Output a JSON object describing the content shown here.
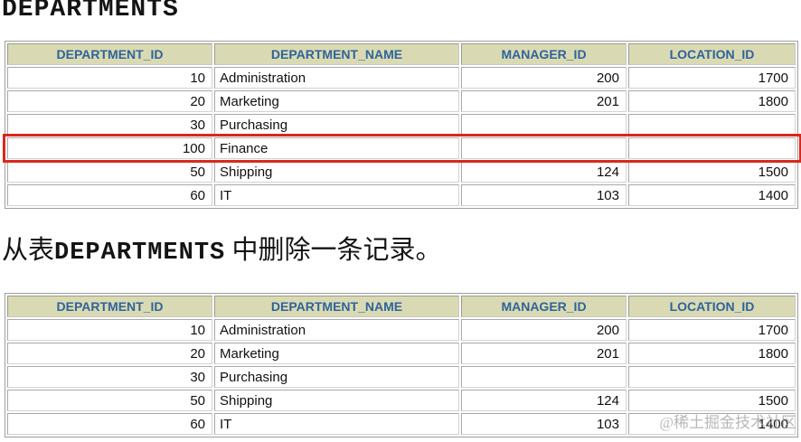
{
  "page": {
    "title": "DEPARTMENTS"
  },
  "caption": {
    "prefix": "从表",
    "table_name": "DEPARTMENTS",
    "suffix": " 中删除一条记录。"
  },
  "columns": [
    "DEPARTMENT_ID",
    "DEPARTMENT_NAME",
    "MANAGER_ID",
    "LOCATION_ID"
  ],
  "table_before": {
    "rows": [
      [
        "10",
        "Administration",
        "200",
        "1700"
      ],
      [
        "20",
        "Marketing",
        "201",
        "1800"
      ],
      [
        "30",
        "Purchasing",
        "",
        ""
      ],
      [
        "100",
        "Finance",
        "",
        ""
      ],
      [
        "50",
        "Shipping",
        "124",
        "1500"
      ],
      [
        "60",
        "IT",
        "103",
        "1400"
      ]
    ],
    "highlight": {
      "row_index": 3,
      "color": "#da271c",
      "meaning": "row-to-be-deleted"
    }
  },
  "table_after": {
    "rows": [
      [
        "10",
        "Administration",
        "200",
        "1700"
      ],
      [
        "20",
        "Marketing",
        "201",
        "1800"
      ],
      [
        "30",
        "Purchasing",
        "",
        ""
      ],
      [
        "50",
        "Shipping",
        "124",
        "1500"
      ],
      [
        "60",
        "IT",
        "103",
        "1400"
      ]
    ]
  },
  "watermark": "@稀土掘金技术社区",
  "colors": {
    "header_bg": "#d9dab3",
    "header_text": "#2f639b",
    "highlight_red": "#da271c",
    "cell_border": "#a8a8a8",
    "table_border": "#9e9e9e"
  }
}
